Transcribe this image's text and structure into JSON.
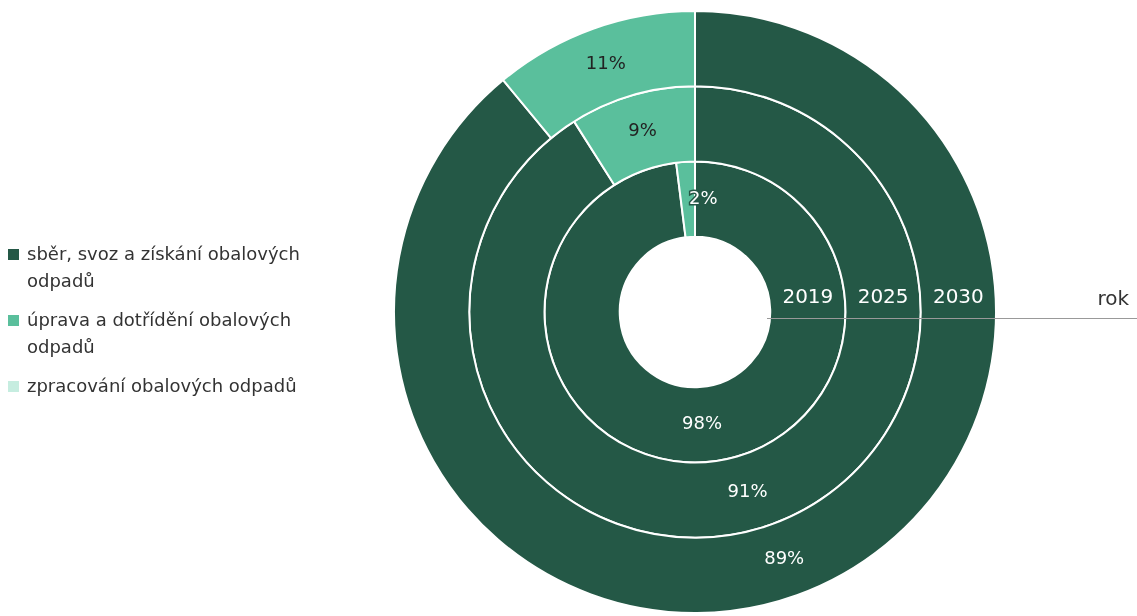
{
  "chart_data": {
    "type": "donut",
    "categories": [
      "sběr, svoz a získání obalových odpadů",
      "úprava a dotřídění obalových odpadů",
      "zpracování obalových odpadů"
    ],
    "colors": [
      "#245846",
      "#5abf9c",
      "#c6ede0"
    ],
    "series": [
      {
        "name": "2019",
        "values": [
          98,
          2,
          0
        ],
        "value_labels": [
          "98%",
          "2%",
          null
        ]
      },
      {
        "name": "2025",
        "values": [
          91,
          9,
          0
        ],
        "value_labels": [
          "91%",
          "9%",
          null
        ]
      },
      {
        "name": "2030",
        "values": [
          89,
          11,
          0
        ],
        "value_labels": [
          "89%",
          "11%",
          null
        ]
      }
    ],
    "legend": "left",
    "legend_title": "rok"
  }
}
